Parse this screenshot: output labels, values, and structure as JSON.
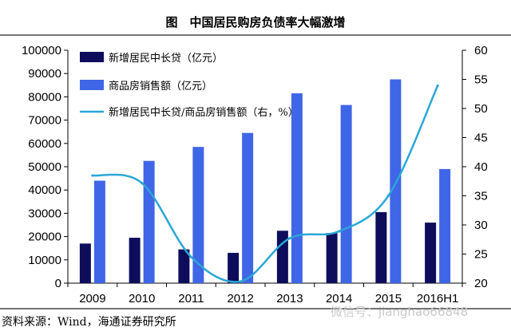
{
  "chart_data": {
    "type": "bar",
    "title": "图　中国居民购房负债率大幅激增",
    "categories": [
      "2009",
      "2010",
      "2011",
      "2012",
      "2013",
      "2014",
      "2015",
      "2016H1"
    ],
    "series": [
      {
        "name": "新增居民中长贷（亿元）",
        "kind": "bar",
        "axis": "left",
        "color": "#0d0d5c",
        "values": [
          17000,
          19500,
          14500,
          13000,
          22500,
          21500,
          30500,
          26000
        ]
      },
      {
        "name": "商品房销售额（亿元）",
        "kind": "bar",
        "axis": "left",
        "color": "#3f66e6",
        "values": [
          44000,
          52500,
          58500,
          64500,
          81500,
          76500,
          87500,
          49000
        ]
      },
      {
        "name": "新增居民中长贷/商品房销售额（右，%）",
        "kind": "line",
        "axis": "right",
        "color": "#2aa7d6",
        "values": [
          38.5,
          37.2,
          24.5,
          20.3,
          27.7,
          28.9,
          35.0,
          53.9
        ]
      }
    ],
    "ylim": [
      0,
      100000
    ],
    "y_ticks": [
      "0",
      "10000",
      "20000",
      "30000",
      "40000",
      "50000",
      "60000",
      "70000",
      "80000",
      "90000",
      "100000"
    ],
    "y2lim": [
      20,
      60
    ],
    "y2_ticks": [
      "20",
      "25",
      "30",
      "35",
      "40",
      "45",
      "50",
      "55",
      "60"
    ],
    "legend_position": "top-left",
    "grid": false
  },
  "source_note": "资料来源：Wind，海通证券研究所",
  "watermark": "微信号：jianghao66848"
}
